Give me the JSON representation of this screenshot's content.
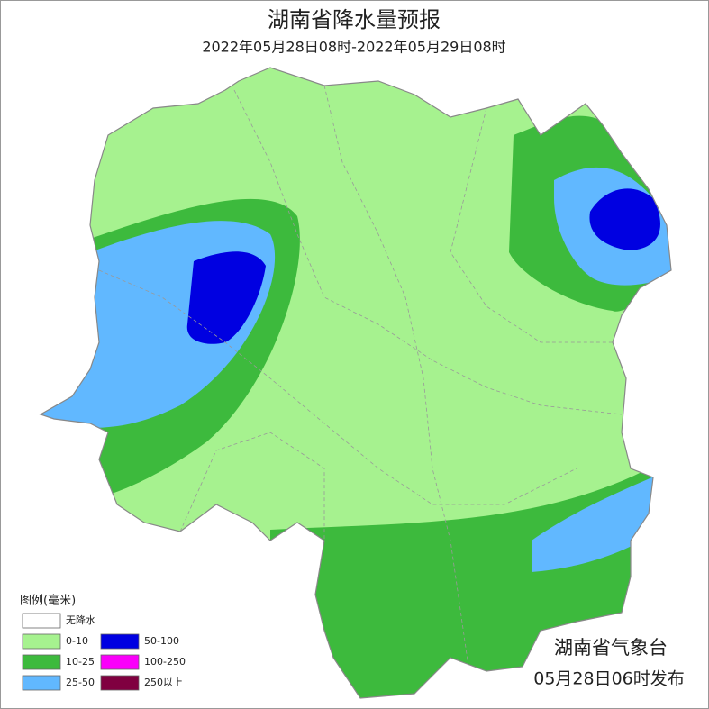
{
  "title": "湖南省降水量预报",
  "subtitle": "2022年05月28日08时-2022年05月29日08时",
  "legend": {
    "title": "图例(毫米)",
    "items": [
      {
        "label": "无降水",
        "color": "#ffffff"
      },
      {
        "label": "0-10",
        "color": "#a6f28f"
      },
      {
        "label": "10-25",
        "color": "#3dba3d"
      },
      {
        "label": "25-50",
        "color": "#61b8ff"
      },
      {
        "label": "50-100",
        "color": "#0000e1"
      },
      {
        "label": "100-250",
        "color": "#fa00fa"
      },
      {
        "label": "250以上",
        "color": "#800040"
      }
    ]
  },
  "issuer": "湖南省气象台",
  "issued": "05月28日06时发布"
}
